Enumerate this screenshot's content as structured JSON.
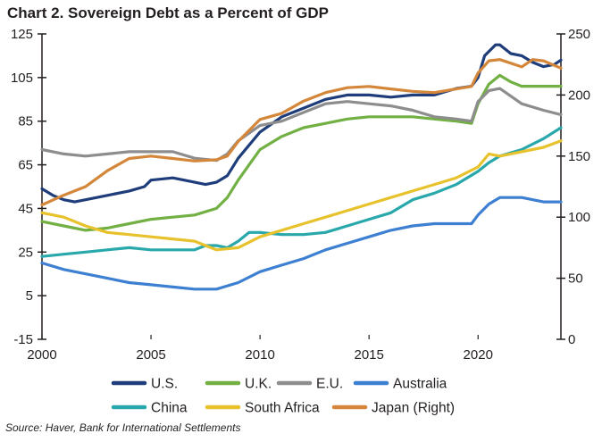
{
  "chart_data": {
    "type": "line",
    "title": "Chart 2. Sovereign Debt as a Percent of GDP",
    "source": "Source: Haver, Bank for International Settlements",
    "x_ticks": [
      "2000",
      "2005",
      "2010",
      "2015",
      "2020"
    ],
    "y_left": {
      "ticks": [
        "125",
        "105",
        "85",
        "65",
        "45",
        "25",
        "5",
        "-15"
      ],
      "ylim": [
        -15,
        125
      ]
    },
    "y_right": {
      "ticks": [
        "250",
        "200",
        "150",
        "100",
        "50",
        "0"
      ],
      "ylim": [
        0,
        250
      ]
    },
    "xlim": [
      2000,
      2023.8
    ],
    "series": [
      {
        "name": "U.S.",
        "color": "#1f3d7a",
        "axis": "left",
        "points": [
          [
            2000,
            54
          ],
          [
            2000.5,
            51
          ],
          [
            2001,
            49
          ],
          [
            2001.5,
            48
          ],
          [
            2002,
            49
          ],
          [
            2003,
            51
          ],
          [
            2004,
            53
          ],
          [
            2004.7,
            55
          ],
          [
            2005,
            58
          ],
          [
            2006,
            59
          ],
          [
            2007,
            57
          ],
          [
            2007.5,
            56
          ],
          [
            2008,
            57
          ],
          [
            2008.5,
            60
          ],
          [
            2009,
            68
          ],
          [
            2010,
            80
          ],
          [
            2011,
            87
          ],
          [
            2012,
            91
          ],
          [
            2013,
            95
          ],
          [
            2014,
            97
          ],
          [
            2015,
            97
          ],
          [
            2016,
            96
          ],
          [
            2017,
            97
          ],
          [
            2018,
            97
          ],
          [
            2019,
            100
          ],
          [
            2019.7,
            101
          ],
          [
            2020,
            105
          ],
          [
            2020.3,
            115
          ],
          [
            2020.8,
            120
          ],
          [
            2021,
            120
          ],
          [
            2021.5,
            116
          ],
          [
            2022,
            115
          ],
          [
            2022.5,
            112
          ],
          [
            2023,
            110
          ],
          [
            2023.5,
            111
          ],
          [
            2023.8,
            113
          ]
        ]
      },
      {
        "name": "U.K.",
        "color": "#72b044",
        "axis": "left",
        "points": [
          [
            2000,
            39
          ],
          [
            2001,
            37
          ],
          [
            2002,
            35
          ],
          [
            2003,
            36
          ],
          [
            2004,
            38
          ],
          [
            2005,
            40
          ],
          [
            2006,
            41
          ],
          [
            2007,
            42
          ],
          [
            2008,
            45
          ],
          [
            2008.5,
            50
          ],
          [
            2009,
            58
          ],
          [
            2009.5,
            65
          ],
          [
            2010,
            72
          ],
          [
            2011,
            78
          ],
          [
            2012,
            82
          ],
          [
            2013,
            84
          ],
          [
            2014,
            86
          ],
          [
            2015,
            87
          ],
          [
            2016,
            87
          ],
          [
            2017,
            87
          ],
          [
            2018,
            86
          ],
          [
            2019,
            85
          ],
          [
            2019.7,
            84
          ],
          [
            2020,
            93
          ],
          [
            2020.5,
            102
          ],
          [
            2021,
            106
          ],
          [
            2021.5,
            103
          ],
          [
            2022,
            101
          ],
          [
            2023,
            101
          ],
          [
            2023.8,
            101
          ]
        ]
      },
      {
        "name": "E.U.",
        "color": "#8d8d8d",
        "axis": "left",
        "points": [
          [
            2000,
            72
          ],
          [
            2001,
            70
          ],
          [
            2002,
            69
          ],
          [
            2003,
            70
          ],
          [
            2004,
            71
          ],
          [
            2005,
            71
          ],
          [
            2006,
            71
          ],
          [
            2007,
            68
          ],
          [
            2008,
            67
          ],
          [
            2008.5,
            70
          ],
          [
            2009,
            76
          ],
          [
            2010,
            83
          ],
          [
            2011,
            85
          ],
          [
            2012,
            89
          ],
          [
            2013,
            93
          ],
          [
            2014,
            94
          ],
          [
            2015,
            93
          ],
          [
            2016,
            92
          ],
          [
            2017,
            90
          ],
          [
            2018,
            87
          ],
          [
            2019,
            86
          ],
          [
            2019.7,
            85
          ],
          [
            2020,
            94
          ],
          [
            2020.5,
            99
          ],
          [
            2021,
            100
          ],
          [
            2022,
            93
          ],
          [
            2023,
            90
          ],
          [
            2023.8,
            88
          ]
        ]
      },
      {
        "name": "Australia",
        "color": "#3d7fd1",
        "axis": "left",
        "points": [
          [
            2000,
            20
          ],
          [
            2001,
            17
          ],
          [
            2002,
            15
          ],
          [
            2003,
            13
          ],
          [
            2004,
            11
          ],
          [
            2005,
            10
          ],
          [
            2006,
            9
          ],
          [
            2007,
            8
          ],
          [
            2008,
            8
          ],
          [
            2009,
            11
          ],
          [
            2010,
            16
          ],
          [
            2011,
            19
          ],
          [
            2012,
            22
          ],
          [
            2013,
            26
          ],
          [
            2014,
            29
          ],
          [
            2015,
            32
          ],
          [
            2016,
            35
          ],
          [
            2017,
            37
          ],
          [
            2018,
            38
          ],
          [
            2019,
            38
          ],
          [
            2019.7,
            38
          ],
          [
            2020,
            42
          ],
          [
            2020.5,
            47
          ],
          [
            2021,
            50
          ],
          [
            2021.5,
            50
          ],
          [
            2022,
            50
          ],
          [
            2023,
            48
          ],
          [
            2023.8,
            48
          ]
        ]
      },
      {
        "name": "China",
        "color": "#29a8ab",
        "axis": "left",
        "points": [
          [
            2000,
            23
          ],
          [
            2001,
            24
          ],
          [
            2002,
            25
          ],
          [
            2003,
            26
          ],
          [
            2004,
            27
          ],
          [
            2005,
            26
          ],
          [
            2006,
            26
          ],
          [
            2007,
            26
          ],
          [
            2007.5,
            28
          ],
          [
            2008,
            28
          ],
          [
            2008.5,
            27
          ],
          [
            2009,
            30
          ],
          [
            2009.5,
            34
          ],
          [
            2010,
            34
          ],
          [
            2011,
            33
          ],
          [
            2012,
            33
          ],
          [
            2013,
            34
          ],
          [
            2014,
            37
          ],
          [
            2015,
            40
          ],
          [
            2016,
            43
          ],
          [
            2016.5,
            46
          ],
          [
            2017,
            49
          ],
          [
            2018,
            52
          ],
          [
            2019,
            56
          ],
          [
            2020,
            62
          ],
          [
            2020.5,
            66
          ],
          [
            2021,
            69
          ],
          [
            2022,
            72
          ],
          [
            2023,
            77
          ],
          [
            2023.8,
            82
          ]
        ]
      },
      {
        "name": "South Africa",
        "color": "#e8c22c",
        "axis": "left",
        "points": [
          [
            2000,
            43
          ],
          [
            2001,
            41
          ],
          [
            2002,
            37
          ],
          [
            2003,
            34
          ],
          [
            2004,
            33
          ],
          [
            2005,
            32
          ],
          [
            2006,
            31
          ],
          [
            2007,
            30
          ],
          [
            2007.5,
            28
          ],
          [
            2008,
            26
          ],
          [
            2009,
            27
          ],
          [
            2010,
            32
          ],
          [
            2011,
            35
          ],
          [
            2012,
            38
          ],
          [
            2013,
            41
          ],
          [
            2014,
            44
          ],
          [
            2015,
            47
          ],
          [
            2016,
            50
          ],
          [
            2017,
            53
          ],
          [
            2018,
            56
          ],
          [
            2019,
            59
          ],
          [
            2020,
            64
          ],
          [
            2020.5,
            70
          ],
          [
            2021,
            69
          ],
          [
            2022,
            71
          ],
          [
            2023,
            73
          ],
          [
            2023.8,
            76
          ]
        ]
      },
      {
        "name": "Japan (Right)",
        "color": "#d4873a",
        "axis": "right",
        "points": [
          [
            2000,
            110
          ],
          [
            2001,
            118
          ],
          [
            2002,
            125
          ],
          [
            2003,
            138
          ],
          [
            2004,
            148
          ],
          [
            2005,
            150
          ],
          [
            2006,
            148
          ],
          [
            2007,
            146
          ],
          [
            2008,
            147
          ],
          [
            2008.5,
            150
          ],
          [
            2009,
            162
          ],
          [
            2010,
            180
          ],
          [
            2011,
            185
          ],
          [
            2012,
            195
          ],
          [
            2013,
            202
          ],
          [
            2014,
            206
          ],
          [
            2015,
            207
          ],
          [
            2016,
            205
          ],
          [
            2017,
            203
          ],
          [
            2018,
            202
          ],
          [
            2019,
            205
          ],
          [
            2019.7,
            207
          ],
          [
            2020,
            218
          ],
          [
            2020.5,
            228
          ],
          [
            2021,
            229
          ],
          [
            2022,
            223
          ],
          [
            2022.5,
            229
          ],
          [
            2023,
            228
          ],
          [
            2023.8,
            222
          ]
        ]
      }
    ]
  }
}
